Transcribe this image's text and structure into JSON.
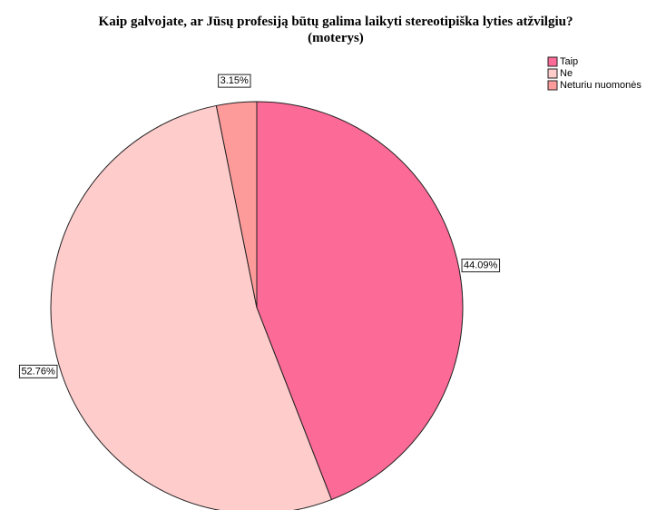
{
  "chart_data": {
    "type": "pie",
    "title": [
      "Kaip galvojate, ar Jūsų profesiją būtų galima laikyti stereotipiška lyties atžvilgiu?",
      "(moterys)"
    ],
    "categories": [
      "Taip",
      "Ne",
      "Neturiu nuomonės"
    ],
    "values": [
      44.09,
      52.76,
      3.15
    ],
    "value_labels": [
      "44.09%",
      "52.76%",
      "3.15%"
    ],
    "colors": [
      "#fc6a97",
      "#ffcccc",
      "#fd9a9a"
    ],
    "legend": "top-right"
  }
}
